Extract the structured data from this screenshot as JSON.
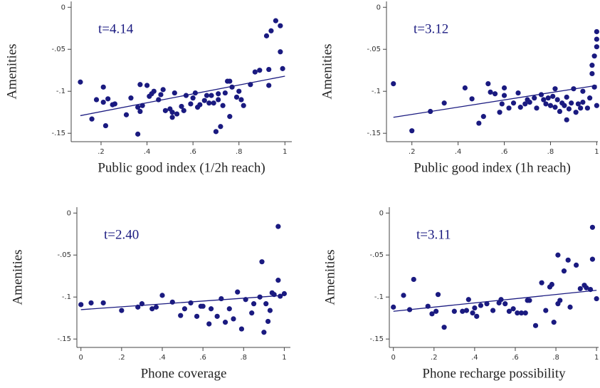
{
  "chart_data": [
    {
      "type": "scatter",
      "annotation": "t=4.14",
      "xlabel": "Public good index (1/2h reach)",
      "ylabel": "Amenities",
      "color": "#1a1a80",
      "x": [
        0.11,
        0.16,
        0.18,
        0.21,
        0.22,
        0.21,
        0.23,
        0.25,
        0.26,
        0.31,
        0.33,
        0.36,
        0.37,
        0.37,
        0.38,
        0.4,
        0.41,
        0.42,
        0.43,
        0.45,
        0.46,
        0.47,
        0.48,
        0.5,
        0.51,
        0.51,
        0.52,
        0.53,
        0.55,
        0.56,
        0.57,
        0.59,
        0.6,
        0.61,
        0.62,
        0.63,
        0.65,
        0.66,
        0.67,
        0.68,
        0.69,
        0.71,
        0.7,
        0.71,
        0.73,
        0.72,
        0.74,
        0.75,
        0.76,
        0.76,
        0.77,
        0.79,
        0.8,
        0.81,
        0.82,
        0.85,
        0.87,
        0.89,
        0.92,
        0.93,
        0.93,
        0.94,
        0.96,
        0.98,
        0.98,
        0.99,
        0.36
      ],
      "y": [
        -0.089,
        -0.133,
        -0.11,
        -0.095,
        -0.141,
        -0.113,
        -0.109,
        -0.116,
        -0.115,
        -0.128,
        -0.108,
        -0.119,
        -0.092,
        -0.124,
        -0.117,
        -0.093,
        -0.106,
        -0.103,
        -0.1,
        -0.11,
        -0.104,
        -0.098,
        -0.123,
        -0.121,
        -0.131,
        -0.125,
        -0.102,
        -0.127,
        -0.118,
        -0.123,
        -0.105,
        -0.115,
        -0.108,
        -0.102,
        -0.119,
        -0.116,
        -0.111,
        -0.105,
        -0.114,
        -0.105,
        -0.114,
        -0.11,
        -0.148,
        -0.103,
        -0.117,
        -0.142,
        -0.102,
        -0.088,
        -0.13,
        -0.088,
        -0.095,
        -0.107,
        -0.1,
        -0.11,
        -0.117,
        -0.092,
        -0.077,
        -0.075,
        -0.034,
        -0.093,
        -0.074,
        -0.028,
        -0.016,
        -0.022,
        -0.053,
        -0.073,
        -0.151
      ],
      "fit": {
        "x": [
          0.11,
          1
        ],
        "y": [
          -0.129,
          -0.082
        ]
      },
      "xlim": [
        0.07,
        1.03
      ],
      "ylim": [
        -0.16,
        0.007
      ],
      "xticks": [
        {
          "value": 0.2,
          "label": ".2"
        },
        {
          "value": 0.4,
          "label": ".4"
        },
        {
          "value": 0.6,
          "label": ".6"
        },
        {
          "value": 0.8,
          "label": ".8"
        },
        1
      ],
      "yticks": [
        0,
        {
          "value": -0.05,
          "label": "-.05"
        },
        {
          "value": -0.1,
          "label": "-.1"
        },
        {
          "value": -0.15,
          "label": "-.15"
        }
      ]
    },
    {
      "type": "scatter",
      "annotation": "t=3.12",
      "xlabel": "Public good index (1h reach)",
      "ylabel": "Amenities",
      "color": "#1a1a80",
      "x": [
        0.12,
        0.2,
        0.28,
        0.34,
        0.43,
        0.46,
        0.49,
        0.51,
        0.53,
        0.54,
        0.56,
        0.58,
        0.59,
        0.6,
        0.6,
        0.62,
        0.64,
        0.66,
        0.67,
        0.69,
        0.7,
        0.71,
        0.73,
        0.74,
        0.76,
        0.77,
        0.78,
        0.79,
        0.8,
        0.81,
        0.82,
        0.82,
        0.83,
        0.84,
        0.85,
        0.86,
        0.87,
        0.87,
        0.88,
        0.89,
        0.9,
        0.91,
        0.92,
        0.93,
        0.94,
        0.94,
        0.96,
        0.97,
        0.98,
        0.98,
        0.99,
        0.99,
        1.0,
        1.0,
        1.0,
        1.0
      ],
      "y": [
        -0.091,
        -0.147,
        -0.124,
        -0.114,
        -0.096,
        -0.109,
        -0.138,
        -0.13,
        -0.091,
        -0.101,
        -0.103,
        -0.125,
        -0.115,
        -0.096,
        -0.105,
        -0.12,
        -0.114,
        -0.102,
        -0.119,
        -0.115,
        -0.11,
        -0.113,
        -0.108,
        -0.12,
        -0.104,
        -0.11,
        -0.115,
        -0.108,
        -0.117,
        -0.106,
        -0.097,
        -0.119,
        -0.11,
        -0.124,
        -0.114,
        -0.117,
        -0.134,
        -0.107,
        -0.121,
        -0.114,
        -0.097,
        -0.125,
        -0.115,
        -0.12,
        -0.113,
        -0.1,
        -0.12,
        -0.108,
        -0.079,
        -0.069,
        -0.095,
        -0.058,
        -0.047,
        -0.038,
        -0.029,
        -0.117
      ],
      "fit": {
        "x": [
          0.12,
          1
        ],
        "y": [
          -0.131,
          -0.093
        ]
      },
      "xlim": [
        0.09,
        1.005
      ],
      "ylim": [
        -0.16,
        0.007
      ],
      "xticks": [
        {
          "value": 0.2,
          "label": ".2"
        },
        {
          "value": 0.4,
          "label": ".4"
        },
        {
          "value": 0.6,
          "label": ".6"
        },
        {
          "value": 0.8,
          "label": ".8"
        },
        1
      ],
      "yticks": [
        0,
        {
          "value": -0.05,
          "label": "-.05"
        },
        {
          "value": -0.1,
          "label": "-.1"
        },
        {
          "value": -0.15,
          "label": "-.15"
        }
      ]
    },
    {
      "type": "scatter",
      "annotation": "t=2.40",
      "xlabel": "Phone coverage",
      "ylabel": "Amenities",
      "color": "#1a1a80",
      "x": [
        0,
        0.05,
        0.11,
        0.2,
        0.28,
        0.3,
        0.35,
        0.37,
        0.4,
        0.45,
        0.49,
        0.51,
        0.54,
        0.57,
        0.59,
        0.6,
        0.63,
        0.64,
        0.67,
        0.69,
        0.71,
        0.73,
        0.75,
        0.77,
        0.79,
        0.81,
        0.84,
        0.85,
        0.88,
        0.89,
        0.9,
        0.91,
        0.92,
        0.93,
        0.94,
        0.95,
        0.97,
        0.97,
        0.98,
        1.0
      ],
      "y": [
        -0.109,
        -0.107,
        -0.107,
        -0.116,
        -0.112,
        -0.108,
        -0.114,
        -0.112,
        -0.098,
        -0.106,
        -0.122,
        -0.114,
        -0.107,
        -0.123,
        -0.111,
        -0.111,
        -0.132,
        -0.114,
        -0.123,
        -0.102,
        -0.13,
        -0.114,
        -0.126,
        -0.094,
        -0.138,
        -0.103,
        -0.119,
        -0.108,
        -0.1,
        -0.058,
        -0.142,
        -0.108,
        -0.129,
        -0.116,
        -0.095,
        -0.097,
        -0.016,
        -0.08,
        -0.099,
        -0.096
      ],
      "fit": {
        "x": [
          0,
          1
        ],
        "y": [
          -0.115,
          -0.098
        ]
      },
      "xlim": [
        -0.02,
        1.03
      ],
      "ylim": [
        -0.16,
        0.007
      ],
      "xticks": [
        0,
        {
          "value": 0.2,
          "label": ".2"
        },
        {
          "value": 0.4,
          "label": ".4"
        },
        {
          "value": 0.6,
          "label": ".6"
        },
        {
          "value": 0.8,
          "label": ".8"
        },
        1
      ],
      "yticks": [
        0,
        {
          "value": -0.05,
          "label": "-.05"
        },
        {
          "value": -0.1,
          "label": "-.1"
        },
        {
          "value": -0.15,
          "label": "-.15"
        }
      ]
    },
    {
      "type": "scatter",
      "annotation": "t=3.11",
      "xlabel": "Phone recharge possibility",
      "ylabel": "Amenities",
      "color": "#1a1a80",
      "x": [
        0,
        0.05,
        0.08,
        0.1,
        0.17,
        0.19,
        0.21,
        0.22,
        0.25,
        0.3,
        0.34,
        0.36,
        0.37,
        0.39,
        0.4,
        0.41,
        0.43,
        0.46,
        0.49,
        0.52,
        0.53,
        0.55,
        0.57,
        0.59,
        0.61,
        0.63,
        0.65,
        0.66,
        0.67,
        0.7,
        0.73,
        0.75,
        0.77,
        0.78,
        0.79,
        0.81,
        0.81,
        0.82,
        0.84,
        0.86,
        0.87,
        0.9,
        0.92,
        0.94,
        0.95,
        0.97,
        0.98,
        0.98,
        1.0
      ],
      "y": [
        -0.112,
        -0.098,
        -0.115,
        -0.079,
        -0.111,
        -0.12,
        -0.117,
        -0.097,
        -0.136,
        -0.117,
        -0.117,
        -0.116,
        -0.103,
        -0.119,
        -0.113,
        -0.123,
        -0.11,
        -0.108,
        -0.116,
        -0.107,
        -0.103,
        -0.108,
        -0.117,
        -0.114,
        -0.119,
        -0.119,
        -0.119,
        -0.104,
        -0.104,
        -0.134,
        -0.083,
        -0.116,
        -0.088,
        -0.085,
        -0.13,
        -0.108,
        -0.05,
        -0.104,
        -0.069,
        -0.056,
        -0.112,
        -0.062,
        -0.09,
        -0.086,
        -0.089,
        -0.091,
        -0.055,
        -0.017,
        -0.102
      ],
      "fit": {
        "x": [
          0,
          1
        ],
        "y": [
          -0.117,
          -0.092
        ]
      },
      "xlim": [
        -0.02,
        1.01
      ],
      "ylim": [
        -0.16,
        0.007
      ],
      "xticks": [
        0,
        {
          "value": 0.2,
          "label": ".2"
        },
        {
          "value": 0.4,
          "label": ".4"
        },
        {
          "value": 0.6,
          "label": ".6"
        },
        {
          "value": 0.8,
          "label": ".8"
        },
        1
      ],
      "yticks": [
        0,
        {
          "value": -0.05,
          "label": "-.05"
        },
        {
          "value": -0.1,
          "label": "-.1"
        },
        {
          "value": -0.15,
          "label": "-.15"
        }
      ]
    }
  ]
}
